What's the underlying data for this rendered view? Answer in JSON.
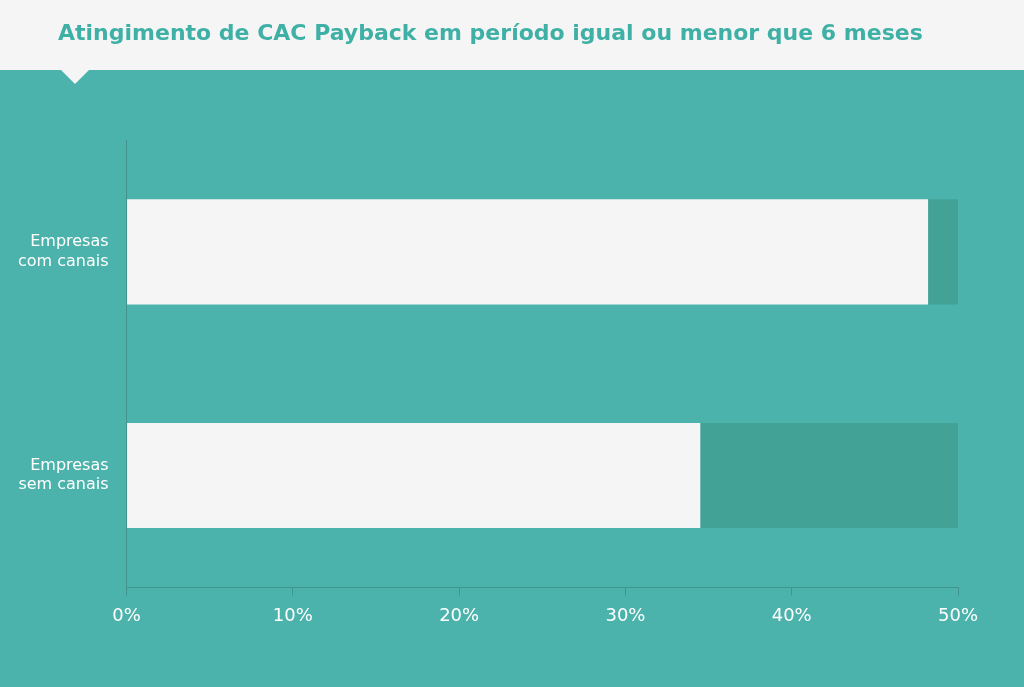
{
  "chart_data": {
    "type": "bar",
    "orientation": "horizontal",
    "stacked": true,
    "title": "Atingimento de CAC Payback em período igual ou menor que 6 meses",
    "categories": [
      "Empresas com canais",
      "Empresas sem canais"
    ],
    "series": [
      {
        "color": "#f5f5f5",
        "values": [
          48.2,
          34.5
        ]
      },
      {
        "color": "#43a296",
        "values": [
          1.8,
          15.5
        ]
      }
    ],
    "xlim": [
      0,
      50
    ],
    "xticks": [
      {
        "value": 0,
        "label": "0%"
      },
      {
        "value": 10,
        "label": "10%"
      },
      {
        "value": 20,
        "label": "20%"
      },
      {
        "value": 30,
        "label": "30%"
      },
      {
        "value": 40,
        "label": "40%"
      },
      {
        "value": 50,
        "label": "50%"
      }
    ],
    "grid": false,
    "legend": false
  }
}
